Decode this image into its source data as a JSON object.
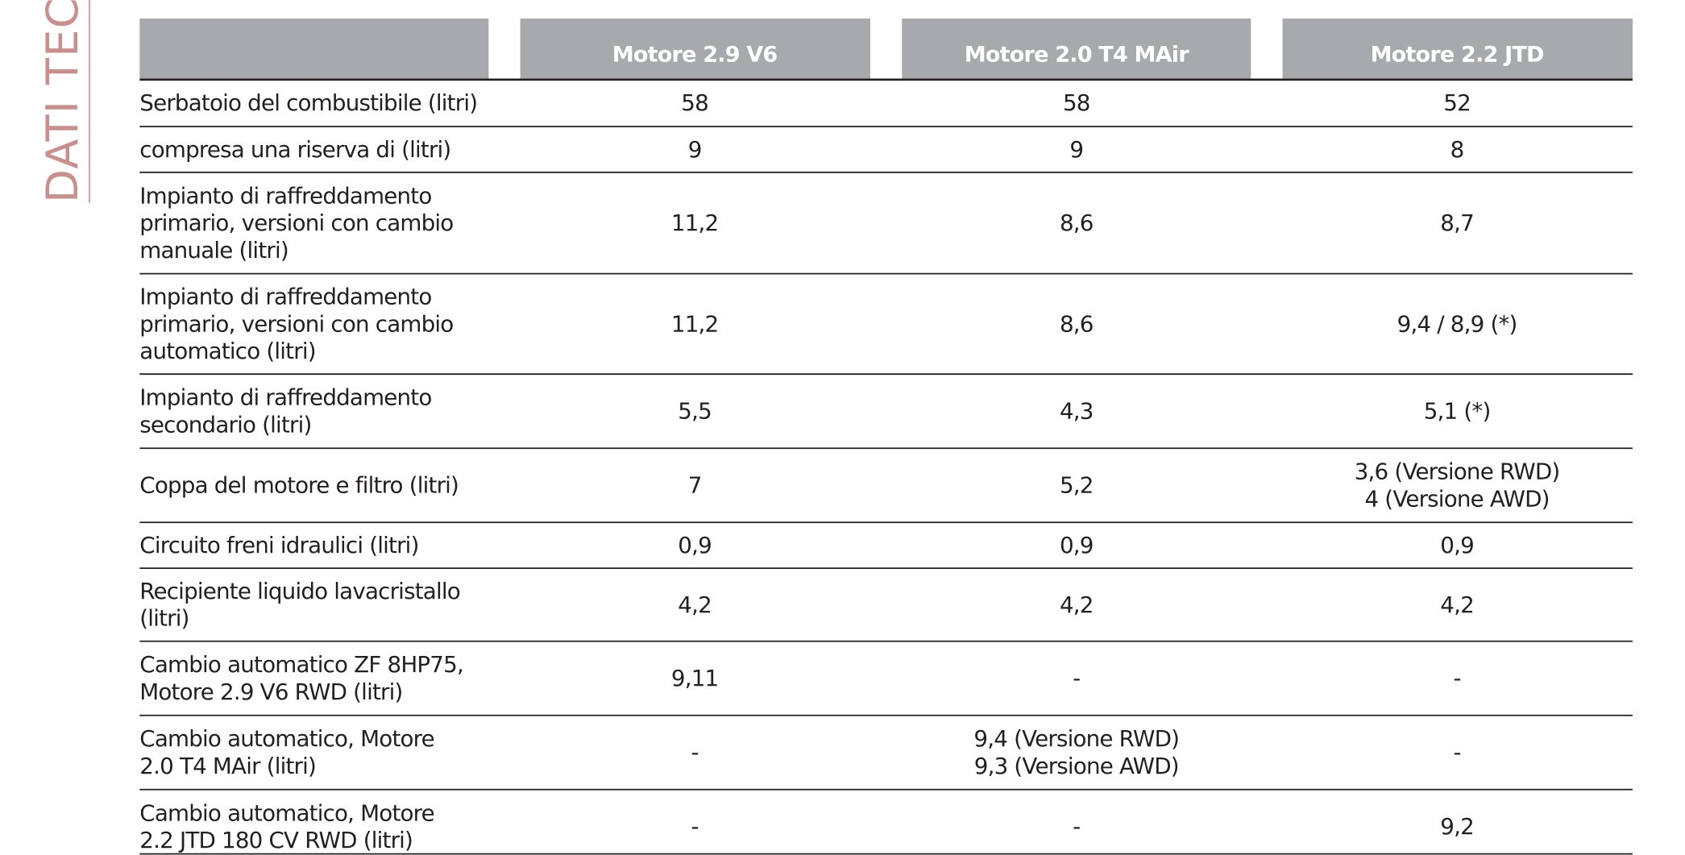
{
  "sidebar": "DATI TECNI",
  "header": {
    "columns": [
      "Motore 2.9 V6",
      "Motore 2.0 T4 MAir",
      "Motore 2.2 JTD"
    ]
  },
  "table": {
    "rows": [
      {
        "label": [
          "Serbatoio del combustibile (litri)"
        ],
        "values": [
          [
            "58"
          ],
          [
            "58"
          ],
          [
            "52"
          ]
        ]
      },
      {
        "label": [
          "compresa una riserva di (litri)"
        ],
        "values": [
          [
            "9"
          ],
          [
            "9"
          ],
          [
            "8"
          ]
        ]
      },
      {
        "label": [
          "Impianto di raffreddamento",
          "primario, versioni con cambio",
          "manuale (litri)"
        ],
        "values": [
          [
            "11,2"
          ],
          [
            "8,6"
          ],
          [
            "8,7"
          ]
        ]
      },
      {
        "label": [
          "Impianto di raffreddamento",
          "primario, versioni con cambio",
          "automatico (litri)"
        ],
        "values": [
          [
            "11,2"
          ],
          [
            "8,6"
          ],
          [
            "9,4 / 8,9 (*)"
          ]
        ]
      },
      {
        "label": [
          "Impianto di raffreddamento",
          "secondario (litri)"
        ],
        "values": [
          [
            "5,5"
          ],
          [
            "4,3"
          ],
          [
            "5,1 (*)"
          ]
        ]
      },
      {
        "label": [
          "Coppa del motore e filtro (litri)"
        ],
        "values": [
          [
            "7"
          ],
          [
            "5,2"
          ],
          [
            "3,6 (Versione RWD)",
            "4 (Versione AWD)"
          ]
        ]
      },
      {
        "label": [
          "Circuito freni idraulici (litri)"
        ],
        "values": [
          [
            "0,9"
          ],
          [
            "0,9"
          ],
          [
            "0,9"
          ]
        ]
      },
      {
        "label": [
          "Recipiente liquido lavacristallo",
          "(litri)"
        ],
        "values": [
          [
            "4,2"
          ],
          [
            "4,2"
          ],
          [
            "4,2"
          ]
        ]
      },
      {
        "label": [
          "Cambio automatico ZF 8HP75,",
          "Motore 2.9 V6 RWD (litri)"
        ],
        "values": [
          [
            "9,11"
          ],
          [
            "-"
          ],
          [
            "-"
          ]
        ]
      },
      {
        "label": [
          "Cambio automatico, Motore",
          "2.0 T4 MAir (litri)"
        ],
        "values": [
          [
            "-"
          ],
          [
            "9,4 (Versione RWD)",
            "9,3 (Versione AWD)"
          ],
          [
            "-"
          ]
        ]
      },
      {
        "label": [
          "Cambio automatico, Motore",
          "2.2 JTD 180 CV RWD (litri)"
        ],
        "values": [
          [
            "-"
          ],
          [
            "-"
          ],
          [
            "9,2"
          ]
        ]
      }
    ]
  }
}
